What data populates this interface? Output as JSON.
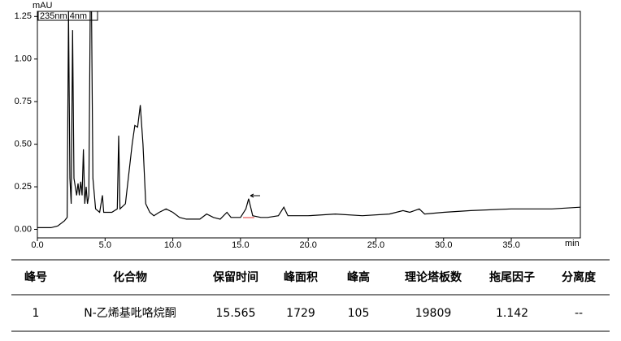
{
  "chart_data": {
    "type": "line",
    "y_label": "mAU",
    "x_label": "min",
    "xlim": [
      0,
      40.1
    ],
    "ylim": [
      -0.05,
      1.28
    ],
    "xticks": [
      {
        "value": 0,
        "label": "0.0"
      },
      {
        "value": 5,
        "label": "5.0"
      },
      {
        "value": 10,
        "label": "10.0"
      },
      {
        "value": 15,
        "label": "15.0"
      },
      {
        "value": 20,
        "label": "20.0"
      },
      {
        "value": 25,
        "label": "25.0"
      },
      {
        "value": 30,
        "label": "30.0"
      },
      {
        "value": 35,
        "label": "35.0"
      }
    ],
    "yticks": [
      {
        "value": 0,
        "label": "0.00"
      },
      {
        "value": 0.25,
        "label": "0.25"
      },
      {
        "value": 0.5,
        "label": "0.50"
      },
      {
        "value": 0.75,
        "label": "0.75"
      },
      {
        "value": 1,
        "label": "1.00"
      },
      {
        "value": 1.25,
        "label": "1.25"
      }
    ],
    "x": [
      0,
      1,
      1.5,
      2.0,
      2.2,
      2.3,
      2.4,
      2.5,
      2.6,
      2.7,
      2.9,
      3.0,
      3.1,
      3.2,
      3.3,
      3.4,
      3.5,
      3.6,
      3.7,
      3.8,
      3.9,
      4.0,
      4.1,
      4.3,
      4.6,
      4.8,
      4.9,
      5.5,
      5.9,
      6.0,
      6.1,
      6.5,
      7.0,
      7.2,
      7.4,
      7.6,
      7.8,
      8.0,
      8.3,
      8.6,
      9.0,
      9.5,
      10.0,
      10.5,
      11,
      12,
      12.5,
      13,
      13.5,
      14,
      14.3,
      15,
      15.4,
      15.6,
      15.9,
      16.5,
      17,
      17.8,
      18.2,
      18.5,
      20,
      22,
      24,
      26,
      27,
      27.5,
      28.2,
      28.6,
      30,
      32,
      35,
      38,
      40.1
    ],
    "series": [
      {
        "name": "235nm,4nm",
        "color": "#000000",
        "values": [
          0.01,
          0.01,
          0.02,
          0.05,
          0.07,
          1.28,
          0.3,
          0.15,
          1.17,
          0.3,
          0.2,
          0.27,
          0.2,
          0.28,
          0.2,
          0.47,
          0.15,
          0.25,
          0.15,
          0.2,
          1.28,
          1.28,
          0.3,
          0.12,
          0.1,
          0.2,
          0.1,
          0.1,
          0.12,
          0.55,
          0.12,
          0.15,
          0.5,
          0.61,
          0.6,
          0.73,
          0.5,
          0.15,
          0.1,
          0.08,
          0.1,
          0.12,
          0.1,
          0.07,
          0.06,
          0.06,
          0.09,
          0.07,
          0.06,
          0.1,
          0.07,
          0.07,
          0.12,
          0.18,
          0.08,
          0.07,
          0.07,
          0.08,
          0.13,
          0.08,
          0.08,
          0.09,
          0.08,
          0.09,
          0.11,
          0.1,
          0.12,
          0.09,
          0.1,
          0.11,
          0.12,
          0.12,
          0.13
        ]
      }
    ]
  },
  "table": {
    "header": [
      "峰号",
      "化合物",
      "保留时间",
      "峰面积",
      "峰高",
      "理论塔板数",
      "拖尾因子",
      "分离度"
    ],
    "rows": [
      [
        1,
        "N-乙烯基吡咯烷酮",
        15.565,
        1729,
        105,
        19809,
        1.142,
        "--"
      ]
    ]
  }
}
